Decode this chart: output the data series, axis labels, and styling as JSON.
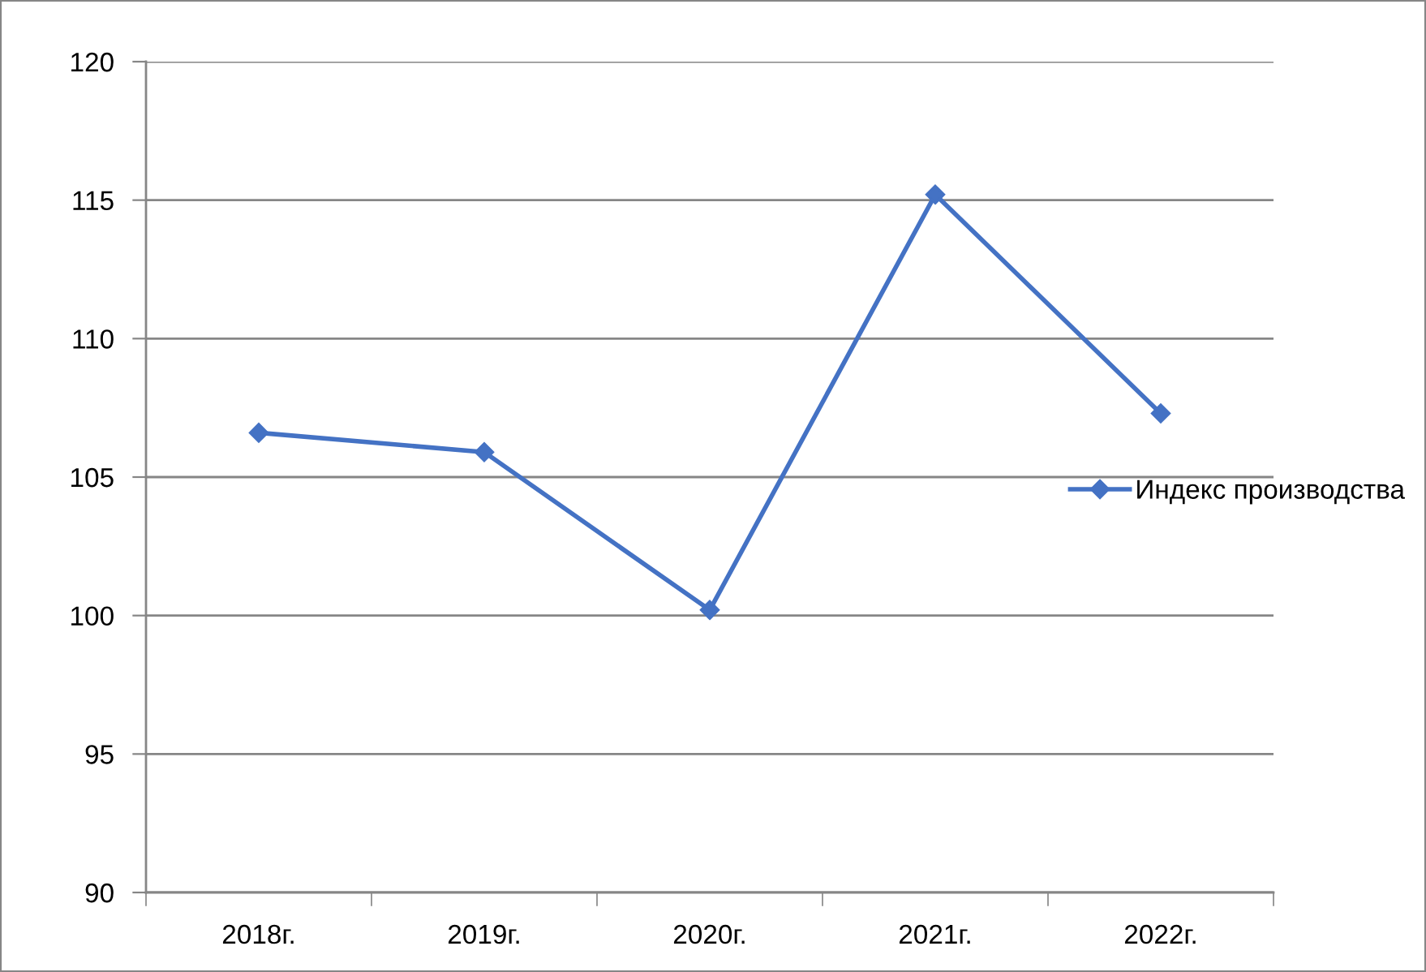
{
  "chart_data": {
    "type": "line",
    "categories": [
      "2018г.",
      "2019г.",
      "2020г.",
      "2021г.",
      "2022г."
    ],
    "series": [
      {
        "name": "Индекс производства",
        "color": "#4472c4",
        "values": [
          106.6,
          105.9,
          100.2,
          115.2,
          107.3
        ]
      }
    ],
    "ylim": [
      90,
      120
    ],
    "yticks": [
      90,
      95,
      100,
      105,
      110,
      115,
      120
    ],
    "grid": "y",
    "legend": "right",
    "marker": "diamond",
    "line_style": "solid"
  }
}
